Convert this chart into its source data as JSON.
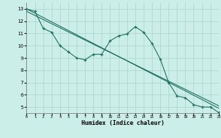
{
  "xlabel": "Humidex (Indice chaleur)",
  "background_color": "#cceee8",
  "grid_color": "#aad8d0",
  "line_color": "#1a6b5a",
  "x_data": [
    0,
    1,
    2,
    3,
    4,
    5,
    6,
    7,
    8,
    9,
    10,
    11,
    12,
    13,
    14,
    15,
    16,
    17,
    18,
    19,
    20,
    21,
    22,
    23
  ],
  "y_main": [
    13.0,
    12.8,
    11.4,
    11.1,
    10.0,
    9.5,
    9.0,
    8.85,
    9.3,
    9.3,
    10.4,
    10.8,
    10.95,
    11.55,
    11.1,
    10.2,
    8.9,
    7.0,
    5.9,
    5.75,
    5.2,
    5.0,
    5.0,
    4.55
  ],
  "y_trend1_x": [
    0,
    23
  ],
  "y_trend1_y": [
    13.0,
    4.9
  ],
  "y_trend2_x": [
    0,
    23
  ],
  "y_trend2_y": [
    12.8,
    5.1
  ],
  "xlim": [
    0,
    23
  ],
  "ylim": [
    4.5,
    13.5
  ],
  "yticks": [
    5,
    6,
    7,
    8,
    9,
    10,
    11,
    12,
    13
  ],
  "xticks": [
    0,
    1,
    2,
    3,
    4,
    5,
    6,
    7,
    8,
    9,
    10,
    11,
    12,
    13,
    14,
    15,
    16,
    17,
    18,
    19,
    20,
    21,
    22,
    23
  ]
}
